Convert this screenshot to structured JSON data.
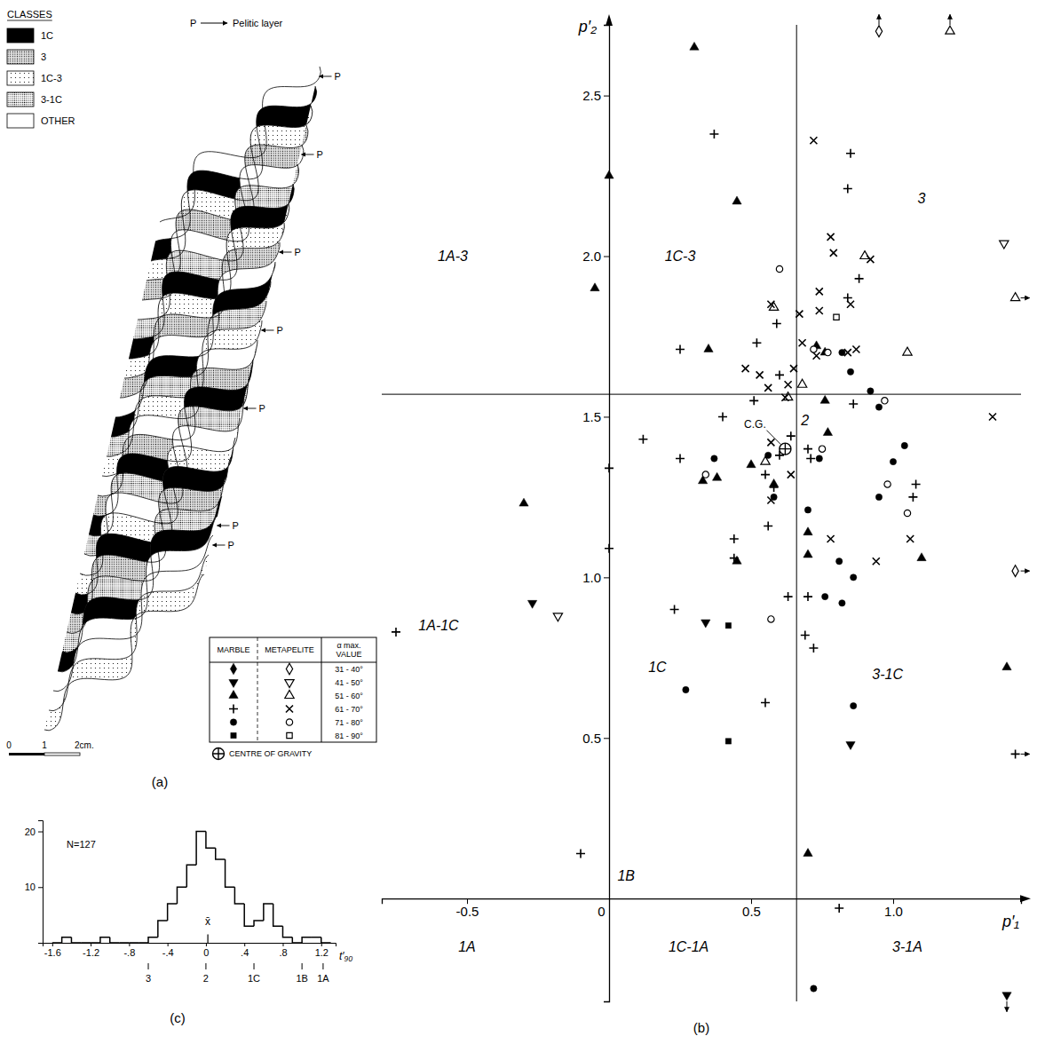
{
  "diagram": {
    "panel": "(a)",
    "legend_title": "CLASSES",
    "classes": [
      "1C",
      "3",
      "1C-3",
      "3-1C",
      "OTHER"
    ],
    "pelitic_key": {
      "symbol": "P",
      "text": "Pelitic layer"
    },
    "pelitic_labels": [
      "P",
      "P",
      "P",
      "P",
      "P",
      "P",
      "P"
    ],
    "scale_bar": [
      "0",
      "1",
      "2cm."
    ]
  },
  "chart_data": [
    {
      "type": "scatter",
      "panel": "(b)",
      "x_label": "p′₁",
      "y_label": "p′₂",
      "color": "#000000",
      "legend": "lower-left",
      "xlim": [
        -0.8,
        1.45
      ],
      "ylim": [
        -0.32,
        2.72
      ],
      "xticks": [
        -0.5,
        0,
        0.5,
        {
          "value": 1.0,
          "label": "1.0"
        }
      ],
      "yticks": [
        0.5,
        {
          "value": 1.0,
          "label": "1.0"
        },
        1.5,
        {
          "value": 2.0,
          "label": "2.0"
        },
        2.5
      ],
      "class_boundaries": {
        "x": 0.66,
        "y": 1.57
      },
      "centre": {
        "x": 0.62,
        "y": 1.4,
        "label": "C.G.",
        "legend_label": "CENTRE OF GRAVITY"
      },
      "legend_headers": [
        "MARBLE",
        "METAPELITE",
        "α max. VALUE"
      ],
      "annotations": [
        {
          "text": "1A-3",
          "x": -0.55,
          "y": 2.0
        },
        {
          "text": "1C-3",
          "x": 0.25,
          "y": 2.0
        },
        {
          "text": "3",
          "x": 1.1,
          "y": 2.18
        },
        {
          "text": "2",
          "x": 0.69,
          "y": 1.49
        },
        {
          "text": "1A-1C",
          "x": -0.6,
          "y": 0.85
        },
        {
          "text": "1C",
          "x": 0.17,
          "y": 0.72
        },
        {
          "text": "3-1C",
          "x": 0.98,
          "y": 0.7
        },
        {
          "text": "1B",
          "x": 0.06,
          "y": 0.07
        },
        {
          "text": "1A",
          "x": -0.5,
          "y": -0.15
        },
        {
          "text": "1C-1A",
          "x": 0.28,
          "y": -0.15
        },
        {
          "text": "3-1A",
          "x": 1.05,
          "y": -0.15
        }
      ],
      "series": [
        {
          "name": "31 - 40°",
          "marble": {
            "marker": "diamond-filled",
            "x": [],
            "y": []
          },
          "metapelite": {
            "marker": "diamond-open",
            "x": [
              0.95,
              1.43
            ],
            "y": [
              2.7,
              1.02
            ]
          }
        },
        {
          "name": "41 - 50°",
          "marble": {
            "marker": "triangle-down-filled",
            "x": [
              -0.27,
              0.34,
              0.85,
              1.4
            ],
            "y": [
              0.92,
              0.86,
              0.48,
              -0.3
            ]
          },
          "metapelite": {
            "marker": "triangle-down-open",
            "x": [
              -0.18,
              1.39
            ],
            "y": [
              0.88,
              2.04
            ]
          }
        },
        {
          "name": "51 - 60°",
          "marble": {
            "marker": "triangle-filled",
            "x": [
              0.3,
              0.0,
              0.45,
              -0.05,
              0.35,
              0.76,
              0.77,
              0.38,
              0.5,
              0.58,
              -0.3,
              0.7,
              0.7,
              0.45,
              1.1,
              1.4,
              0.7,
              0.33,
              0.76,
              0.73
            ],
            "y": [
              2.65,
              2.25,
              2.17,
              1.9,
              1.71,
              1.7,
              1.45,
              1.31,
              1.35,
              1.29,
              1.23,
              1.14,
              1.07,
              1.05,
              1.06,
              0.72,
              0.14,
              1.3,
              1.55,
              1.72
            ]
          },
          "metapelite": {
            "marker": "triangle-open",
            "x": [
              1.2,
              1.43,
              0.9,
              1.05,
              0.58,
              0.63,
              0.55,
              0.68
            ],
            "y": [
              2.7,
              1.87,
              2.0,
              1.7,
              1.84,
              1.56,
              1.36,
              1.6
            ]
          }
        },
        {
          "name": "61 - 70°",
          "marble": {
            "marker": "plus",
            "x": [
              0.37,
              0.85,
              0.84,
              0.25,
              0.59,
              0.52,
              0.51,
              0.6,
              0.88,
              0.84,
              0.86,
              0.12,
              0.25,
              0.4,
              0.6,
              0.7,
              0.71,
              0.55,
              0.44,
              0.44,
              0.56,
              0.63,
              0.7,
              0.23,
              0.55,
              0.69,
              0.72,
              1.08,
              1.07,
              -0.75,
              0.0,
              0.0,
              -0.1,
              0.81,
              1.43,
              0.58,
              0.64
            ],
            "y": [
              2.38,
              2.32,
              2.21,
              1.71,
              1.79,
              1.73,
              1.55,
              1.63,
              1.93,
              1.87,
              1.54,
              1.43,
              1.37,
              1.5,
              1.38,
              1.4,
              1.37,
              1.32,
              1.12,
              1.06,
              1.16,
              0.94,
              0.94,
              0.9,
              0.61,
              0.82,
              0.78,
              1.29,
              1.25,
              0.83,
              1.34,
              1.09,
              0.14,
              -0.03,
              0.45,
              1.28,
              1.44
            ]
          },
          "metapelite": {
            "marker": "cross",
            "x": [
              0.72,
              0.78,
              0.79,
              0.74,
              0.57,
              0.92,
              0.85,
              0.67,
              0.73,
              0.84,
              0.87,
              0.68,
              0.53,
              0.56,
              0.63,
              0.65,
              0.62,
              1.35,
              0.74,
              0.64,
              0.57,
              0.57,
              0.94,
              1.06,
              0.78,
              0.48
            ],
            "y": [
              2.36,
              2.06,
              2.01,
              1.89,
              1.85,
              1.99,
              1.85,
              1.82,
              1.69,
              1.7,
              1.71,
              1.73,
              1.63,
              1.59,
              1.6,
              1.65,
              1.56,
              1.5,
              1.83,
              1.32,
              1.24,
              1.42,
              1.05,
              1.12,
              1.12,
              1.65
            ]
          }
        },
        {
          "name": "71 - 80°",
          "marble": {
            "marker": "circle-filled",
            "x": [
              0.82,
              0.85,
              0.92,
              0.95,
              0.37,
              0.56,
              0.58,
              0.74,
              0.7,
              1.04,
              1.0,
              0.95,
              0.81,
              0.86,
              0.82,
              0.76,
              0.86,
              0.27,
              0.72
            ],
            "y": [
              1.7,
              1.64,
              1.58,
              1.53,
              1.37,
              1.38,
              1.25,
              1.37,
              1.21,
              1.41,
              1.36,
              1.25,
              1.05,
              1.0,
              0.92,
              0.94,
              0.6,
              0.65,
              -0.28
            ]
          },
          "metapelite": {
            "marker": "circle-open",
            "x": [
              0.6,
              0.72,
              0.77,
              0.97,
              0.34,
              0.75,
              0.98,
              1.05,
              0.57
            ],
            "y": [
              1.96,
              1.71,
              1.7,
              1.55,
              1.32,
              1.4,
              1.29,
              1.2,
              0.87
            ]
          }
        },
        {
          "name": "81 - 90°",
          "marble": {
            "marker": "square-filled",
            "x": [
              0.42,
              0.42
            ],
            "y": [
              0.85,
              0.49
            ]
          },
          "metapelite": {
            "marker": "square-open",
            "x": [
              0.8
            ],
            "y": [
              1.81
            ]
          }
        }
      ]
    },
    {
      "type": "histogram",
      "panel": "(c)",
      "annotation": "N=127",
      "x_label": "t′₉₀",
      "color": "#000000",
      "bins": [
        -1.6,
        -1.5,
        -1.4,
        -1.3,
        -1.2,
        -1.1,
        -1.0,
        -0.9,
        -0.8,
        -0.7,
        -0.6,
        -0.5,
        -0.4,
        -0.3,
        -0.2,
        -0.1,
        0,
        0.1,
        0.2,
        0.3,
        0.4,
        0.5,
        0.6,
        0.7,
        0.8,
        0.9,
        1.0,
        1.1,
        1.2,
        1.3
      ],
      "counts": [
        0,
        1,
        0,
        0,
        0,
        1,
        0,
        0,
        0,
        0,
        1,
        4,
        7,
        10,
        14,
        20,
        17,
        15,
        10,
        7,
        3,
        4,
        7,
        3,
        1,
        0,
        1,
        1,
        0
      ],
      "xlim": [
        -1.7,
        1.35
      ],
      "ylim": [
        0,
        22
      ],
      "xticks": [
        -1.6,
        -1.2,
        {
          "value": -0.8,
          "label": "-.8"
        },
        {
          "value": -0.4,
          "label": "-.4"
        },
        0,
        {
          "value": 0.4,
          "label": ".4"
        },
        {
          "value": 0.8,
          "label": ".8"
        },
        1.2
      ],
      "yticks": [
        10,
        20
      ],
      "mean": {
        "label": "x̄",
        "value": 0.02
      },
      "class_marks": [
        {
          "label": "3",
          "value": -0.6
        },
        {
          "label": "2",
          "value": 0
        },
        {
          "label": "1C",
          "value": 0.5
        },
        {
          "label": "1B",
          "value": 1.0
        },
        {
          "label": "1A",
          "value": 1.22
        }
      ]
    }
  ]
}
